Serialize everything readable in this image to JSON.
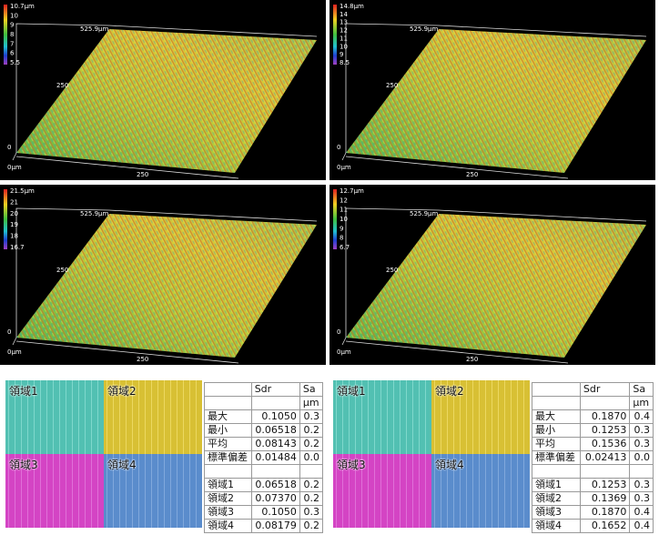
{
  "plots": [
    {
      "scale_labels": [
        "10.7μm",
        "10",
        "9",
        "8",
        "7",
        "6",
        "5.5"
      ],
      "axis_labels": [
        "525.9μm",
        "250",
        "0",
        "0μm",
        "250"
      ]
    },
    {
      "scale_labels": [
        "14.8μm",
        "14",
        "13",
        "12",
        "11",
        "10",
        "9",
        "8.5"
      ],
      "axis_labels": [
        "525.9μm",
        "250",
        "0",
        "0μm",
        "250"
      ]
    },
    {
      "scale_labels": [
        "21.5μm",
        "21",
        "20",
        "19",
        "18",
        "16.7"
      ],
      "axis_labels": [
        "525.9μm",
        "250",
        "0",
        "0μm",
        "250"
      ]
    },
    {
      "scale_labels": [
        "12.7μm",
        "12",
        "11",
        "10",
        "9",
        "8",
        "6.7"
      ],
      "axis_labels": [
        "525.9μm",
        "250",
        "0",
        "0μm",
        "250"
      ]
    }
  ],
  "panels": [
    {
      "regions": [
        "領域1",
        "領域2",
        "領域3",
        "領域4"
      ],
      "table": {
        "columns": [
          "Sdr",
          "Sa"
        ],
        "unit": "μm",
        "stats": [
          [
            "最大",
            "0.1050",
            "0.3"
          ],
          [
            "最小",
            "0.06518",
            "0.2"
          ],
          [
            "平均",
            "0.08143",
            "0.2"
          ],
          [
            "標準偏差",
            "0.01484",
            "0.0"
          ]
        ],
        "region_rows": [
          [
            "領域1",
            "0.06518",
            "0.2"
          ],
          [
            "領域2",
            "0.07370",
            "0.2"
          ],
          [
            "領域3",
            "0.1050",
            "0.3"
          ],
          [
            "領域4",
            "0.08179",
            "0.2"
          ]
        ]
      }
    },
    {
      "regions": [
        "領域1",
        "領域2",
        "領域3",
        "領域4"
      ],
      "table": {
        "columns": [
          "Sdr",
          "Sa"
        ],
        "unit": "μm",
        "stats": [
          [
            "最大",
            "0.1870",
            "0.4"
          ],
          [
            "最小",
            "0.1253",
            "0.3"
          ],
          [
            "平均",
            "0.1536",
            "0.3"
          ],
          [
            "標準偏差",
            "0.02413",
            "0.0"
          ]
        ],
        "region_rows": [
          [
            "領域1",
            "0.1253",
            "0.3"
          ],
          [
            "領域2",
            "0.1369",
            "0.3"
          ],
          [
            "領域3",
            "0.1870",
            "0.4"
          ],
          [
            "領域4",
            "0.1652",
            "0.4"
          ]
        ]
      }
    }
  ]
}
